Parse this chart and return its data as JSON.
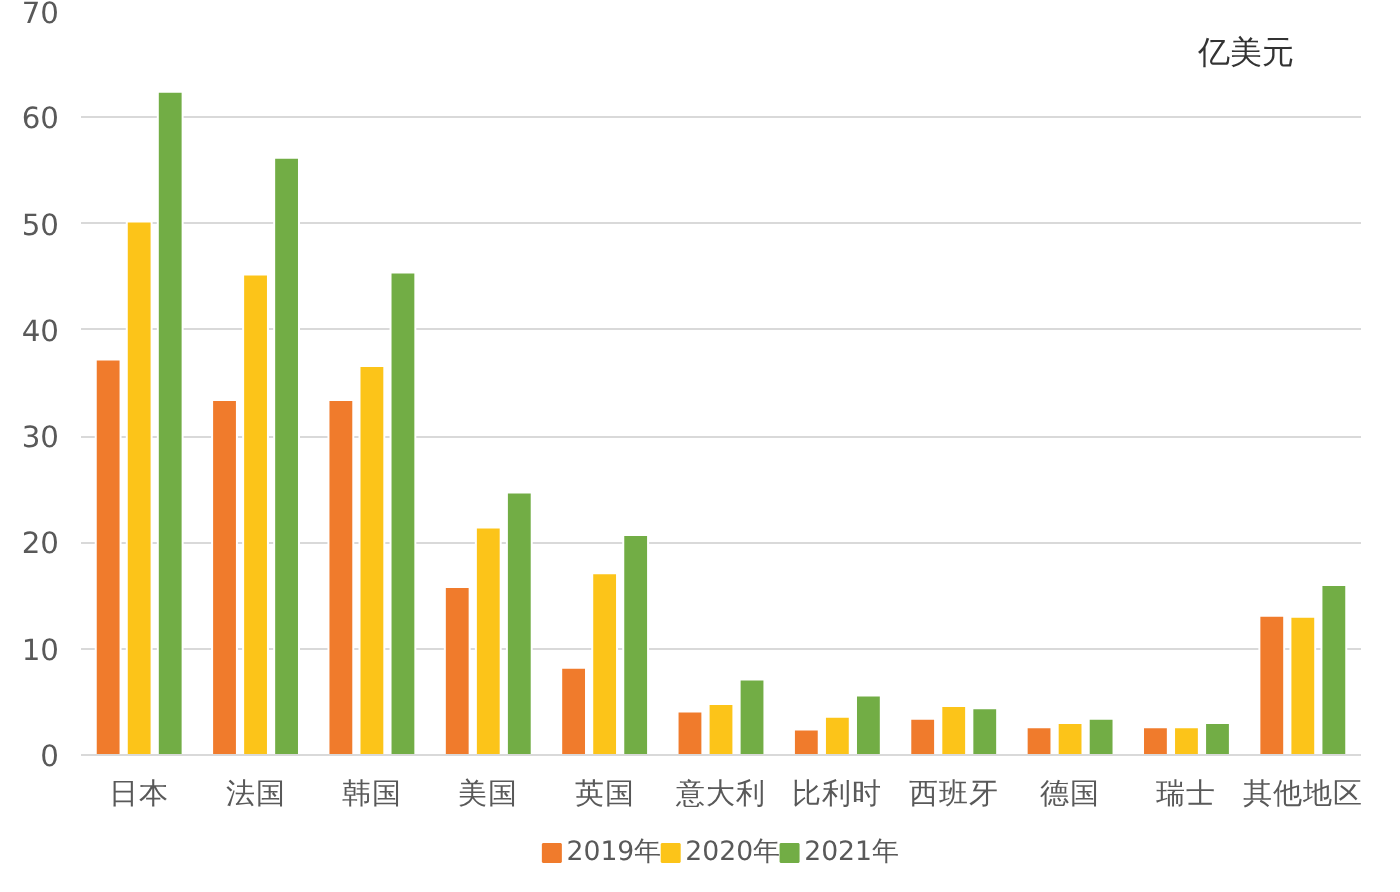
{
  "chart_data": {
    "type": "bar",
    "categories": [
      "日本",
      "法国",
      "韩国",
      "美国",
      "英国",
      "意大利",
      "比利时",
      "西班牙",
      "德国",
      "瑞士",
      "其他地区"
    ],
    "series": [
      {
        "name": "2019年",
        "color": "#f07b2c",
        "values": [
          37.2,
          33.4,
          33.4,
          15.8,
          8.2,
          4.1,
          2.4,
          3.4,
          2.6,
          2.6,
          13.1
        ]
      },
      {
        "name": "2020年",
        "color": "#fcc419",
        "values": [
          50.2,
          45.2,
          36.6,
          21.4,
          17.1,
          4.8,
          3.6,
          4.6,
          3.0,
          2.6,
          13.0
        ]
      },
      {
        "name": "2021年",
        "color": "#72ad45",
        "values": [
          62.4,
          56.2,
          45.4,
          24.7,
          20.7,
          7.1,
          5.6,
          4.4,
          3.4,
          3.0,
          16.0
        ]
      }
    ],
    "ylim": [
      0,
      70
    ],
    "yticks": [
      0,
      10,
      20,
      30,
      40,
      50,
      60,
      70
    ],
    "grid": "y",
    "legend": "bottom",
    "annotations": [
      "亿美元"
    ]
  }
}
